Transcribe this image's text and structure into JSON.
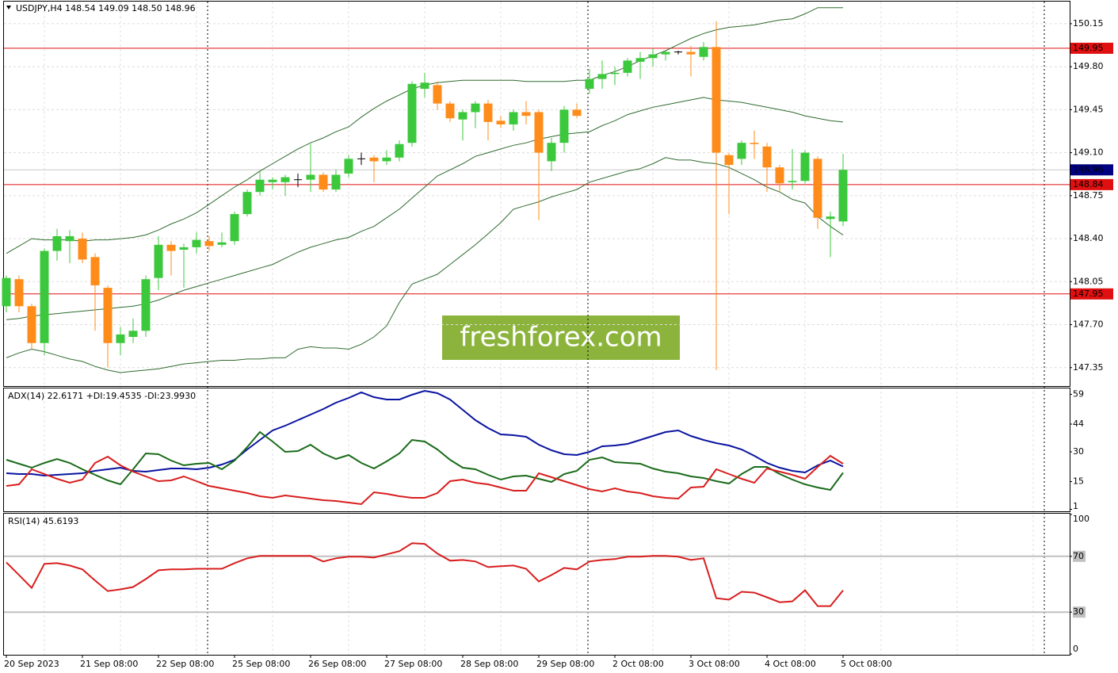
{
  "chart_data": [
    {
      "type": "candlestick",
      "title": "USDJPY,H4  148.54 149.09 148.50 148.96",
      "watermark": "freshforex.com",
      "categories": [
        "20 Sep 2023",
        null,
        null,
        null,
        null,
        null,
        "21 Sep 08:00",
        null,
        null,
        null,
        null,
        null,
        "22 Sep 08:00",
        null,
        null,
        null,
        null,
        null,
        "25 Sep 08:00",
        null,
        null,
        null,
        null,
        null,
        "26 Sep 08:00",
        null,
        null,
        null,
        null,
        null,
        "27 Sep 08:00",
        null,
        null,
        null,
        null,
        null,
        "28 Sep 08:00",
        null,
        null,
        null,
        null,
        null,
        "29 Sep 08:00",
        null,
        null,
        null,
        null,
        null,
        "2 Oct 08:00",
        null,
        null,
        null,
        null,
        null,
        "3 Oct 08:00",
        null,
        null,
        null,
        null,
        null,
        "4 Oct 08:00",
        null,
        null,
        null,
        null,
        null,
        "5 Oct 08:00"
      ],
      "open": [
        147.85,
        148.07,
        147.85,
        147.55,
        148.3,
        148.38,
        148.4,
        148.25,
        148.0,
        147.55,
        147.6,
        147.65,
        148.08,
        148.35,
        148.31,
        148.33,
        148.38,
        148.35,
        148.38,
        148.6,
        148.78,
        148.86,
        148.86,
        148.88,
        148.88,
        148.92,
        148.8,
        148.93,
        149.05,
        149.06,
        149.03,
        149.06,
        149.18,
        149.62,
        149.65,
        149.5,
        149.37,
        149.43,
        149.5,
        149.36,
        149.33,
        149.43,
        149.43,
        149.03,
        149.18,
        149.45,
        149.62,
        149.7,
        149.74,
        149.75,
        149.84,
        149.87,
        149.9,
        149.92,
        149.92,
        149.88,
        149.96,
        149.08,
        149.05,
        149.18,
        149.15,
        148.98,
        148.86,
        148.87,
        149.05,
        148.56,
        148.54
      ],
      "high": [
        148.1,
        148.1,
        147.87,
        148.32,
        148.48,
        148.47,
        148.45,
        148.28,
        148.02,
        147.68,
        147.75,
        148.1,
        148.42,
        148.38,
        148.36,
        148.45,
        148.42,
        148.45,
        148.62,
        148.8,
        148.95,
        148.9,
        148.92,
        148.93,
        149.17,
        148.94,
        148.96,
        149.08,
        149.1,
        149.08,
        149.12,
        149.2,
        149.68,
        149.75,
        149.68,
        149.52,
        149.45,
        149.52,
        149.53,
        149.4,
        149.45,
        149.52,
        149.45,
        149.22,
        149.48,
        149.5,
        149.78,
        149.85,
        149.8,
        149.87,
        149.92,
        149.95,
        149.93,
        149.93,
        149.97,
        150.0,
        150.17,
        149.1,
        149.2,
        149.28,
        149.18,
        149.0,
        149.13,
        149.12,
        149.07,
        148.62,
        149.09
      ],
      "low": [
        147.8,
        147.8,
        147.5,
        147.45,
        148.22,
        148.2,
        148.2,
        147.65,
        147.35,
        147.45,
        147.55,
        147.6,
        147.98,
        148.1,
        148.0,
        148.28,
        148.3,
        148.33,
        148.35,
        148.58,
        148.75,
        148.8,
        148.75,
        148.82,
        148.78,
        148.78,
        148.78,
        148.9,
        149.0,
        148.86,
        149.0,
        149.03,
        149.15,
        149.55,
        149.45,
        149.35,
        149.2,
        149.3,
        149.2,
        149.3,
        149.28,
        149.33,
        148.55,
        148.95,
        149.1,
        149.38,
        149.58,
        149.62,
        149.65,
        149.72,
        149.7,
        149.8,
        149.85,
        149.9,
        149.72,
        149.85,
        147.33,
        148.6,
        149.0,
        149.05,
        148.78,
        148.78,
        148.8,
        148.85,
        148.48,
        148.25,
        148.5
      ],
      "close": [
        148.08,
        147.85,
        147.55,
        148.3,
        148.42,
        148.42,
        148.23,
        148.02,
        147.55,
        147.62,
        147.65,
        148.07,
        148.35,
        148.3,
        148.33,
        148.39,
        148.34,
        148.37,
        148.6,
        148.78,
        148.88,
        148.88,
        148.9,
        148.88,
        148.92,
        148.8,
        148.92,
        149.05,
        149.05,
        149.03,
        149.06,
        149.17,
        149.66,
        149.67,
        149.5,
        149.38,
        149.43,
        149.5,
        149.35,
        149.33,
        149.43,
        149.4,
        149.1,
        149.18,
        149.45,
        149.4,
        149.7,
        149.74,
        149.75,
        149.85,
        149.87,
        149.9,
        149.92,
        149.92,
        149.9,
        149.96,
        149.1,
        149.0,
        149.18,
        149.17,
        148.98,
        148.85,
        148.87,
        149.1,
        148.57,
        148.58,
        148.96
      ],
      "up_color": "#3cc83c",
      "down_color": "#ff8c1a",
      "doji_color": "#000000",
      "bands": {
        "color": "#2e6b2e",
        "upper": [
          148.28,
          148.34,
          148.4,
          148.39,
          148.39,
          148.39,
          148.38,
          148.39,
          148.39,
          148.4,
          148.41,
          148.43,
          148.47,
          148.52,
          148.56,
          148.61,
          148.68,
          148.75,
          148.82,
          148.88,
          148.95,
          149.01,
          149.07,
          149.13,
          149.18,
          149.22,
          149.27,
          149.31,
          149.39,
          149.46,
          149.52,
          149.57,
          149.62,
          149.65,
          149.67,
          149.68,
          149.69,
          149.69,
          149.69,
          149.69,
          149.69,
          149.68,
          149.68,
          149.68,
          149.68,
          149.69,
          149.69,
          149.73,
          149.76,
          149.8,
          149.85,
          149.89,
          149.93,
          149.98,
          150.03,
          150.07,
          150.1,
          150.12,
          150.13,
          150.14,
          150.16,
          150.18,
          150.19,
          150.23,
          150.28,
          150.28,
          150.28
        ],
        "middle": [
          147.74,
          147.75,
          147.77,
          147.78,
          147.79,
          147.8,
          147.81,
          147.82,
          147.83,
          147.84,
          147.85,
          147.87,
          147.9,
          147.94,
          147.98,
          148.01,
          148.04,
          148.07,
          148.1,
          148.13,
          148.16,
          148.19,
          148.24,
          148.29,
          148.33,
          148.36,
          148.39,
          148.41,
          148.46,
          148.5,
          148.57,
          148.64,
          148.73,
          148.82,
          148.91,
          148.96,
          149.01,
          149.07,
          149.1,
          149.13,
          149.16,
          149.18,
          149.21,
          149.23,
          149.25,
          149.26,
          149.27,
          149.32,
          149.36,
          149.41,
          149.44,
          149.47,
          149.49,
          149.51,
          149.53,
          149.55,
          149.53,
          149.52,
          149.51,
          149.49,
          149.47,
          149.45,
          149.43,
          149.4,
          149.38,
          149.36,
          149.35
        ],
        "lower": [
          147.43,
          147.47,
          147.5,
          147.48,
          147.45,
          147.42,
          147.4,
          147.36,
          147.33,
          147.31,
          147.32,
          147.33,
          147.34,
          147.36,
          147.38,
          147.39,
          147.4,
          147.41,
          147.41,
          147.42,
          147.42,
          147.43,
          147.43,
          147.5,
          147.52,
          147.51,
          147.51,
          147.5,
          147.54,
          147.6,
          147.69,
          147.88,
          148.03,
          148.07,
          148.11,
          148.19,
          148.27,
          148.35,
          148.44,
          148.53,
          148.64,
          148.67,
          148.7,
          148.74,
          148.77,
          148.8,
          148.86,
          148.89,
          148.92,
          148.95,
          148.97,
          149.01,
          149.06,
          149.04,
          149.04,
          149.02,
          149.01,
          148.98,
          148.93,
          148.88,
          148.82,
          148.78,
          148.72,
          148.69,
          148.58,
          148.5,
          148.43
        ]
      },
      "ylim": [
        147.2,
        150.33
      ],
      "yticks": [
        150.15,
        {
          "value": 149.8,
          "label": "149.80"
        },
        149.45,
        {
          "value": 149.1,
          "label": "149.10"
        },
        148.75,
        {
          "value": 148.4,
          "label": "148.40"
        },
        148.05,
        {
          "value": 147.7,
          "label": "147.70"
        },
        147.35
      ],
      "grid": true,
      "hlines": [
        149.95,
        148.84,
        147.95
      ],
      "hline_color": "#e01010",
      "last_price": 148.96,
      "last_price_color": "#000080"
    },
    {
      "type": "line",
      "title": "ADX(14) 22.6171 +DI:19.4535 -DI:23.9930",
      "series": [
        {
          "color": "#0a14a0",
          "values": [
            19.2,
            18.8,
            18.8,
            18.0,
            18.4,
            18.8,
            19.2,
            20.4,
            21.2,
            22.0,
            20.4,
            20.0,
            20.8,
            21.6,
            21.6,
            21.2,
            22.0,
            23.6,
            26.0,
            31.2,
            36.0,
            40.8,
            43.2,
            46.0,
            48.8,
            51.6,
            54.8,
            57.2,
            60.0,
            57.6,
            56.4,
            56.4,
            58.8,
            60.8,
            59.6,
            56.4,
            51.2,
            46.0,
            42.0,
            38.8,
            38.4,
            37.6,
            33.6,
            30.8,
            28.8,
            28.4,
            30.0,
            32.8,
            33.2,
            34.0,
            36.0,
            38.0,
            40.0,
            40.8,
            38.0,
            36.0,
            34.4,
            33.2,
            31.2,
            28.0,
            24.4,
            22.0,
            20.4,
            19.6,
            23.2,
            25.6,
            22.62
          ]
        },
        {
          "color": "#1a6b1a",
          "values": [
            26.0,
            24.0,
            22.0,
            24.4,
            26.4,
            24.4,
            21.2,
            18.4,
            15.6,
            13.6,
            21.2,
            29.2,
            28.8,
            25.6,
            23.2,
            24.0,
            24.4,
            21.2,
            25.6,
            32.4,
            40.0,
            35.2,
            30.0,
            30.4,
            33.6,
            29.2,
            26.4,
            28.4,
            24.4,
            21.6,
            25.2,
            29.2,
            36.0,
            35.2,
            31.2,
            26.0,
            22.0,
            21.2,
            18.4,
            16.0,
            17.6,
            18.0,
            16.4,
            14.8,
            18.8,
            20.4,
            26.0,
            27.2,
            24.8,
            24.4,
            24.0,
            21.6,
            20.0,
            19.2,
            17.6,
            16.8,
            15.2,
            14.0,
            18.8,
            22.4,
            22.4,
            18.8,
            16.0,
            13.6,
            12.0,
            10.8,
            19.45
          ]
        },
        {
          "color": "#d81e1e",
          "values": [
            12.8,
            13.6,
            21.2,
            18.8,
            16.4,
            14.4,
            16.0,
            24.4,
            27.6,
            23.2,
            20.0,
            17.6,
            15.2,
            15.6,
            17.6,
            15.2,
            12.8,
            11.6,
            10.4,
            9.2,
            7.6,
            6.8,
            8.0,
            7.2,
            6.4,
            5.6,
            5.2,
            4.4,
            3.6,
            9.6,
            8.8,
            7.6,
            6.8,
            6.8,
            9.2,
            15.2,
            16.0,
            14.4,
            13.6,
            12.0,
            10.4,
            10.4,
            19.2,
            17.2,
            15.2,
            13.2,
            11.2,
            10.0,
            11.6,
            10.0,
            9.2,
            7.6,
            6.8,
            6.4,
            12.0,
            12.4,
            21.2,
            18.8,
            16.4,
            14.4,
            21.6,
            20.0,
            18.4,
            16.4,
            22.4,
            28.0,
            23.99
          ]
        }
      ],
      "ylim": [
        0,
        62
      ],
      "yticks": [
        59,
        44,
        30,
        15,
        1
      ],
      "grid": false
    },
    {
      "type": "line",
      "title": "RSI(14) 45.6193",
      "series": [
        {
          "color": "#d81e1e",
          "values": [
            65.7,
            56.6,
            47.4,
            64.6,
            65.1,
            63.4,
            60.6,
            52.6,
            45.1,
            46.3,
            48.0,
            53.7,
            60.0,
            60.6,
            60.6,
            61.1,
            61.1,
            61.1,
            65.1,
            68.6,
            70.3,
            70.3,
            70.3,
            70.3,
            70.3,
            66.3,
            68.6,
            69.7,
            69.7,
            69.1,
            71.4,
            73.7,
            79.4,
            78.9,
            72.0,
            66.9,
            67.4,
            66.3,
            62.3,
            62.9,
            63.4,
            61.1,
            52.0,
            56.6,
            61.7,
            60.6,
            66.3,
            67.4,
            68.0,
            69.7,
            69.7,
            70.3,
            70.3,
            69.7,
            67.4,
            68.6,
            40.0,
            38.9,
            44.6,
            44.0,
            40.6,
            37.1,
            37.7,
            45.7,
            34.3,
            34.3,
            45.62
          ]
        }
      ],
      "ylim": [
        0,
        100
      ],
      "yticks": [
        100,
        70,
        30,
        0
      ],
      "grid": true
    }
  ]
}
